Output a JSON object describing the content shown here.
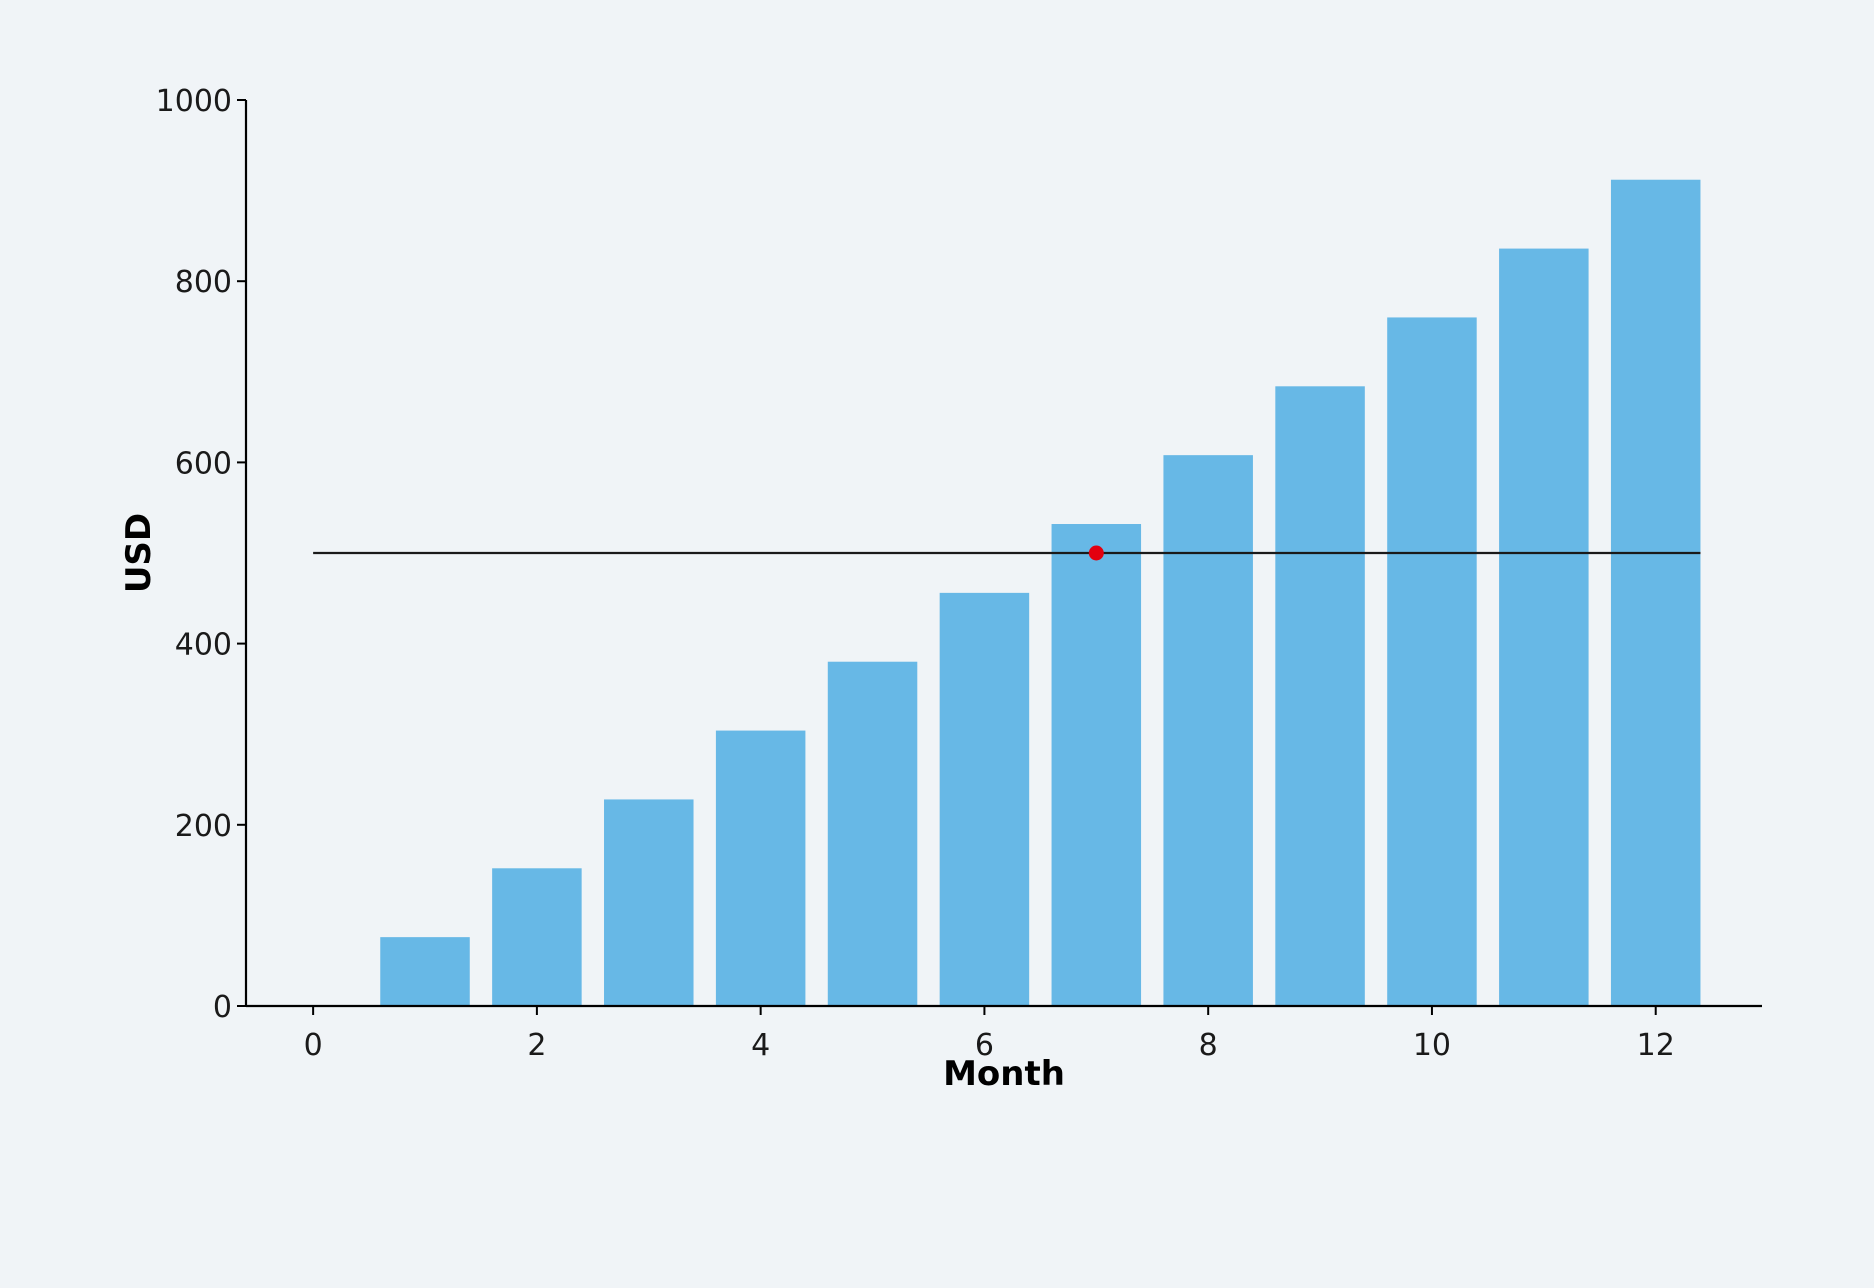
{
  "chart_data": {
    "type": "bar",
    "x": [
      1,
      2,
      3,
      4,
      5,
      6,
      7,
      8,
      9,
      10,
      11,
      12
    ],
    "values": [
      76,
      152,
      228,
      304,
      380,
      456,
      532,
      608,
      684,
      760,
      836,
      912
    ],
    "xlabel": "Month",
    "ylabel": "USD",
    "xlim": [
      -0.6,
      12.95
    ],
    "ylim": [
      0,
      1000
    ],
    "xticks": [
      0,
      2,
      4,
      6,
      8,
      10,
      12
    ],
    "yticks": [
      0,
      200,
      400,
      600,
      800,
      1000
    ],
    "bar_width": 0.8,
    "reference_line": {
      "y": 500,
      "x_start": 0,
      "x_end": 12.4
    },
    "marker_point": {
      "x": 7,
      "y": 500
    },
    "grid": false,
    "colors": {
      "bar": "#67b8e6",
      "axis": "#000000",
      "reference_line": "#1a1a1a",
      "marker": "#e3000f",
      "background": "#f0f4f7"
    }
  }
}
